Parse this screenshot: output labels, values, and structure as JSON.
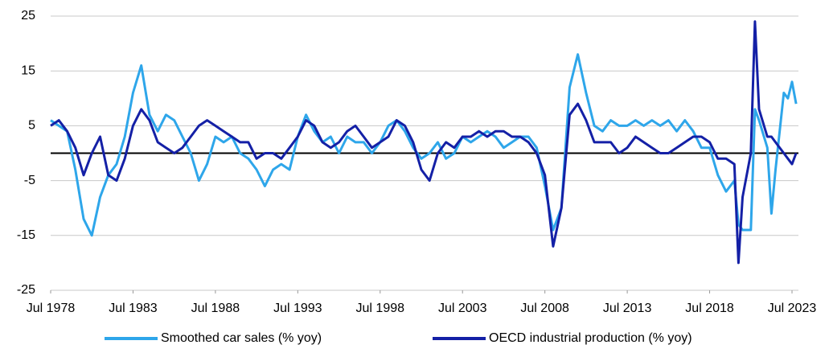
{
  "chart_data": {
    "type": "line",
    "x": [
      "1978-07",
      "1979-01",
      "1979-07",
      "1980-01",
      "1980-07",
      "1981-01",
      "1981-07",
      "1982-01",
      "1982-07",
      "1983-01",
      "1983-07",
      "1984-01",
      "1984-07",
      "1985-01",
      "1985-07",
      "1986-01",
      "1986-07",
      "1987-01",
      "1987-07",
      "1988-01",
      "1988-07",
      "1989-01",
      "1989-07",
      "1990-01",
      "1990-07",
      "1991-01",
      "1991-07",
      "1992-01",
      "1992-07",
      "1993-01",
      "1993-07",
      "1994-01",
      "1994-07",
      "1995-01",
      "1995-07",
      "1996-01",
      "1996-07",
      "1997-01",
      "1997-07",
      "1998-01",
      "1998-07",
      "1999-01",
      "1999-07",
      "2000-01",
      "2000-07",
      "2001-01",
      "2001-07",
      "2002-01",
      "2002-07",
      "2003-01",
      "2003-07",
      "2004-01",
      "2004-07",
      "2005-01",
      "2005-07",
      "2006-01",
      "2006-07",
      "2007-01",
      "2007-07",
      "2008-01",
      "2008-07",
      "2009-01",
      "2009-07",
      "2010-01",
      "2010-07",
      "2011-01",
      "2011-07",
      "2012-01",
      "2012-07",
      "2013-01",
      "2013-07",
      "2014-01",
      "2014-07",
      "2015-01",
      "2015-07",
      "2016-01",
      "2016-07",
      "2017-01",
      "2017-07",
      "2018-01",
      "2018-07",
      "2019-01",
      "2019-07",
      "2020-01",
      "2020-04",
      "2020-07",
      "2021-01",
      "2021-04",
      "2021-07",
      "2022-01",
      "2022-04",
      "2022-07",
      "2023-01",
      "2023-04",
      "2023-07",
      "2023-10"
    ],
    "series": [
      {
        "name": "Smoothed car sales (% yoy)",
        "color": "#2ea6ea",
        "values": [
          6,
          5,
          4,
          -3,
          -12,
          -15,
          -8,
          -4,
          -2,
          3,
          11,
          16,
          7,
          4,
          7,
          6,
          3,
          0,
          -5,
          -2,
          3,
          2,
          3,
          0,
          -1,
          -3,
          -6,
          -3,
          -2,
          -3,
          3,
          7,
          4,
          2,
          3,
          0,
          3,
          2,
          2,
          0,
          2,
          5,
          6,
          4,
          1,
          -1,
          0,
          2,
          -1,
          0,
          3,
          2,
          3,
          4,
          3,
          1,
          2,
          3,
          3,
          1,
          -6,
          -14,
          -10,
          12,
          18,
          11,
          5,
          4,
          6,
          5,
          5,
          6,
          5,
          6,
          5,
          6,
          4,
          6,
          4,
          1,
          1,
          -4,
          -7,
          -5,
          -13,
          -14,
          -14,
          8,
          6,
          1,
          -11,
          -3,
          11,
          10,
          13,
          9
        ]
      },
      {
        "name": "OECD industrial production (% yoy)",
        "color": "#1420a6",
        "values": [
          5,
          6,
          4,
          1,
          -4,
          0,
          3,
          -4,
          -5,
          -1,
          5,
          8,
          6,
          2,
          1,
          0,
          1,
          3,
          5,
          6,
          5,
          4,
          3,
          2,
          2,
          -1,
          0,
          0,
          -1,
          1,
          3,
          6,
          5,
          2,
          1,
          2,
          4,
          5,
          3,
          1,
          2,
          3,
          6,
          5,
          2,
          -3,
          -5,
          0,
          2,
          1,
          3,
          3,
          4,
          3,
          4,
          4,
          3,
          3,
          2,
          0,
          -4,
          -17,
          -10,
          7,
          9,
          6,
          2,
          2,
          2,
          0,
          1,
          3,
          2,
          1,
          0,
          0,
          1,
          2,
          3,
          3,
          2,
          -1,
          -1,
          -2,
          -20,
          -8,
          0,
          24,
          8,
          3,
          3,
          2,
          0,
          -1,
          -2,
          0
        ]
      }
    ],
    "xlim": [
      "1978-07",
      "2023-07"
    ],
    "xticks": [
      {
        "value": "1978-07",
        "label": "Jul 1978"
      },
      {
        "value": "1983-07",
        "label": "Jul 1983"
      },
      {
        "value": "1988-07",
        "label": "Jul 1988"
      },
      {
        "value": "1993-07",
        "label": "Jul 1993"
      },
      {
        "value": "1998-07",
        "label": "Jul 1998"
      },
      {
        "value": "2003-07",
        "label": "Jul 2003"
      },
      {
        "value": "2008-07",
        "label": "Jul 2008"
      },
      {
        "value": "2013-07",
        "label": "Jul 2013"
      },
      {
        "value": "2018-07",
        "label": "Jul 2018"
      },
      {
        "value": "2023-07",
        "label": "Jul 2023"
      }
    ],
    "ylim": [
      -25,
      25
    ],
    "yticks": [
      -25,
      -15,
      -5,
      5,
      15,
      25
    ],
    "baseline": 0,
    "grid": true,
    "legend": "bottom"
  }
}
